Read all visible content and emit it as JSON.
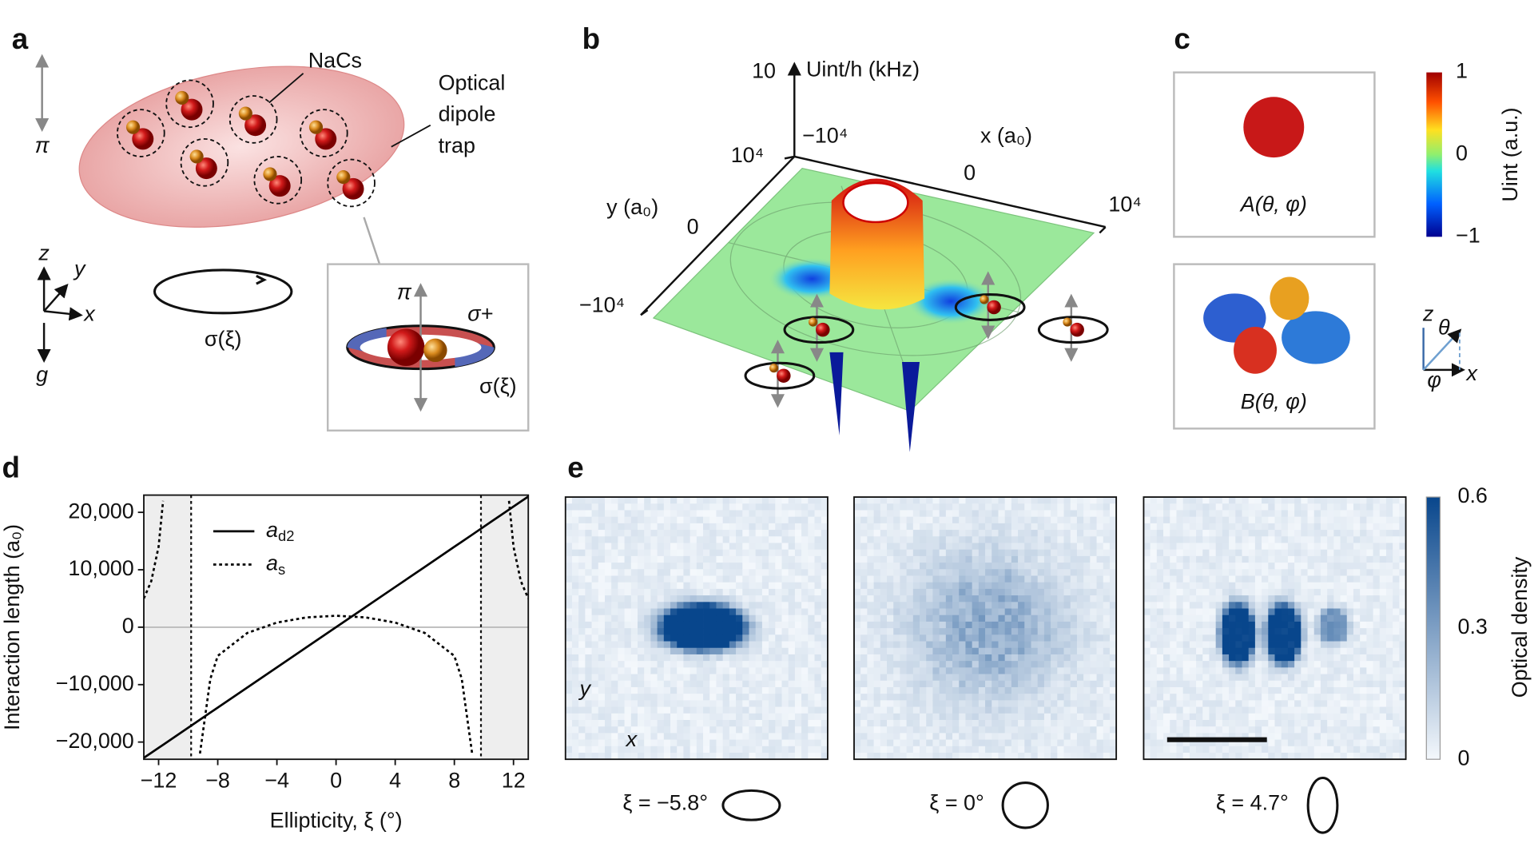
{
  "panels": {
    "a": {
      "label": "a",
      "molecule": "NaCs",
      "trap": [
        "Optical",
        "dipole",
        "trap"
      ],
      "pi": "π",
      "axes": [
        "z",
        "y",
        "x"
      ],
      "gravity": "g",
      "polarization": "σ(ξ)",
      "inset": {
        "pi": "π",
        "sigma_plus": "σ+",
        "polarization": "σ(ξ)"
      }
    },
    "b": {
      "label": "b",
      "z_tick": "10",
      "z_label": "Uint/h (kHz)",
      "x_label": "x (a₀)",
      "x_ticks": [
        "−10⁴",
        "0",
        "10⁴"
      ],
      "y_label": "y (a₀)",
      "y_ticks": [
        "10⁴",
        "0",
        "−10⁴"
      ]
    },
    "c": {
      "label": "c",
      "a_caption": "A(θ, φ)",
      "b_caption": "B(θ, φ)",
      "colorbar_label": "Uint (a.u.)",
      "colorbar_ticks": [
        "1",
        "0",
        "−1"
      ],
      "axes": [
        "z",
        "θ",
        "φ",
        "x"
      ]
    },
    "e": {
      "label": "e",
      "colorbar_label": "Optical density",
      "colorbar_ticks": [
        "0.6",
        "0.3",
        "0"
      ],
      "captions": [
        "ξ = −5.8°",
        "ξ = 0°",
        "ξ = 4.7°"
      ],
      "axes": [
        "y",
        "x"
      ]
    }
  },
  "chart_data": {
    "type": "line",
    "panel_label": "d",
    "xlabel": "Ellipticity, ξ (°)",
    "ylabel": "Interaction length (a₀)",
    "x": [
      -13,
      -12.5,
      -12,
      -11.7,
      -10.5,
      -9.2,
      -8.5,
      -8,
      -6,
      -4,
      -2,
      0,
      2,
      4,
      6,
      8,
      8.5,
      9.2,
      10.5,
      11.7,
      12,
      12.5,
      13
    ],
    "series": [
      {
        "name": "ad2",
        "color": "#000000",
        "style": "solid",
        "values": [
          -22750,
          -21875,
          -21000,
          -20475,
          -18375,
          -16100,
          -14875,
          -14000,
          -10500,
          -7000,
          -3500,
          0,
          3500,
          7000,
          10500,
          14000,
          14875,
          16100,
          18375,
          20475,
          21000,
          21875,
          22750
        ]
      },
      {
        "name": "as",
        "color": "#000000",
        "style": "dashed",
        "values": [
          5000,
          8000,
          14000,
          22000,
          null,
          -22000,
          -9000,
          -5000,
          -1000,
          800,
          1700,
          2000,
          1700,
          800,
          -1000,
          -5000,
          -9000,
          -22000,
          null,
          22000,
          14000,
          8000,
          5000
        ]
      }
    ],
    "xlim": [
      -13,
      13
    ],
    "ylim": [
      -23000,
      23000
    ],
    "xticks": [
      {
        "value": -12,
        "label": "−12"
      },
      {
        "value": -8,
        "label": "−8"
      },
      {
        "value": -4,
        "label": "−4"
      },
      0,
      4,
      8,
      12
    ],
    "yticks": [
      {
        "value": -20000,
        "label": "−20,000"
      },
      {
        "value": -10000,
        "label": "−10,000"
      },
      0,
      {
        "value": 10000,
        "label": "10,000"
      },
      {
        "value": 20000,
        "label": "20,000"
      }
    ],
    "shaded": [
      [
        -13,
        -9.8
      ],
      [
        9.8,
        13
      ]
    ],
    "asymptotes": [
      -9.8,
      9.8
    ],
    "zero_line": 0,
    "legend": "upper left"
  }
}
